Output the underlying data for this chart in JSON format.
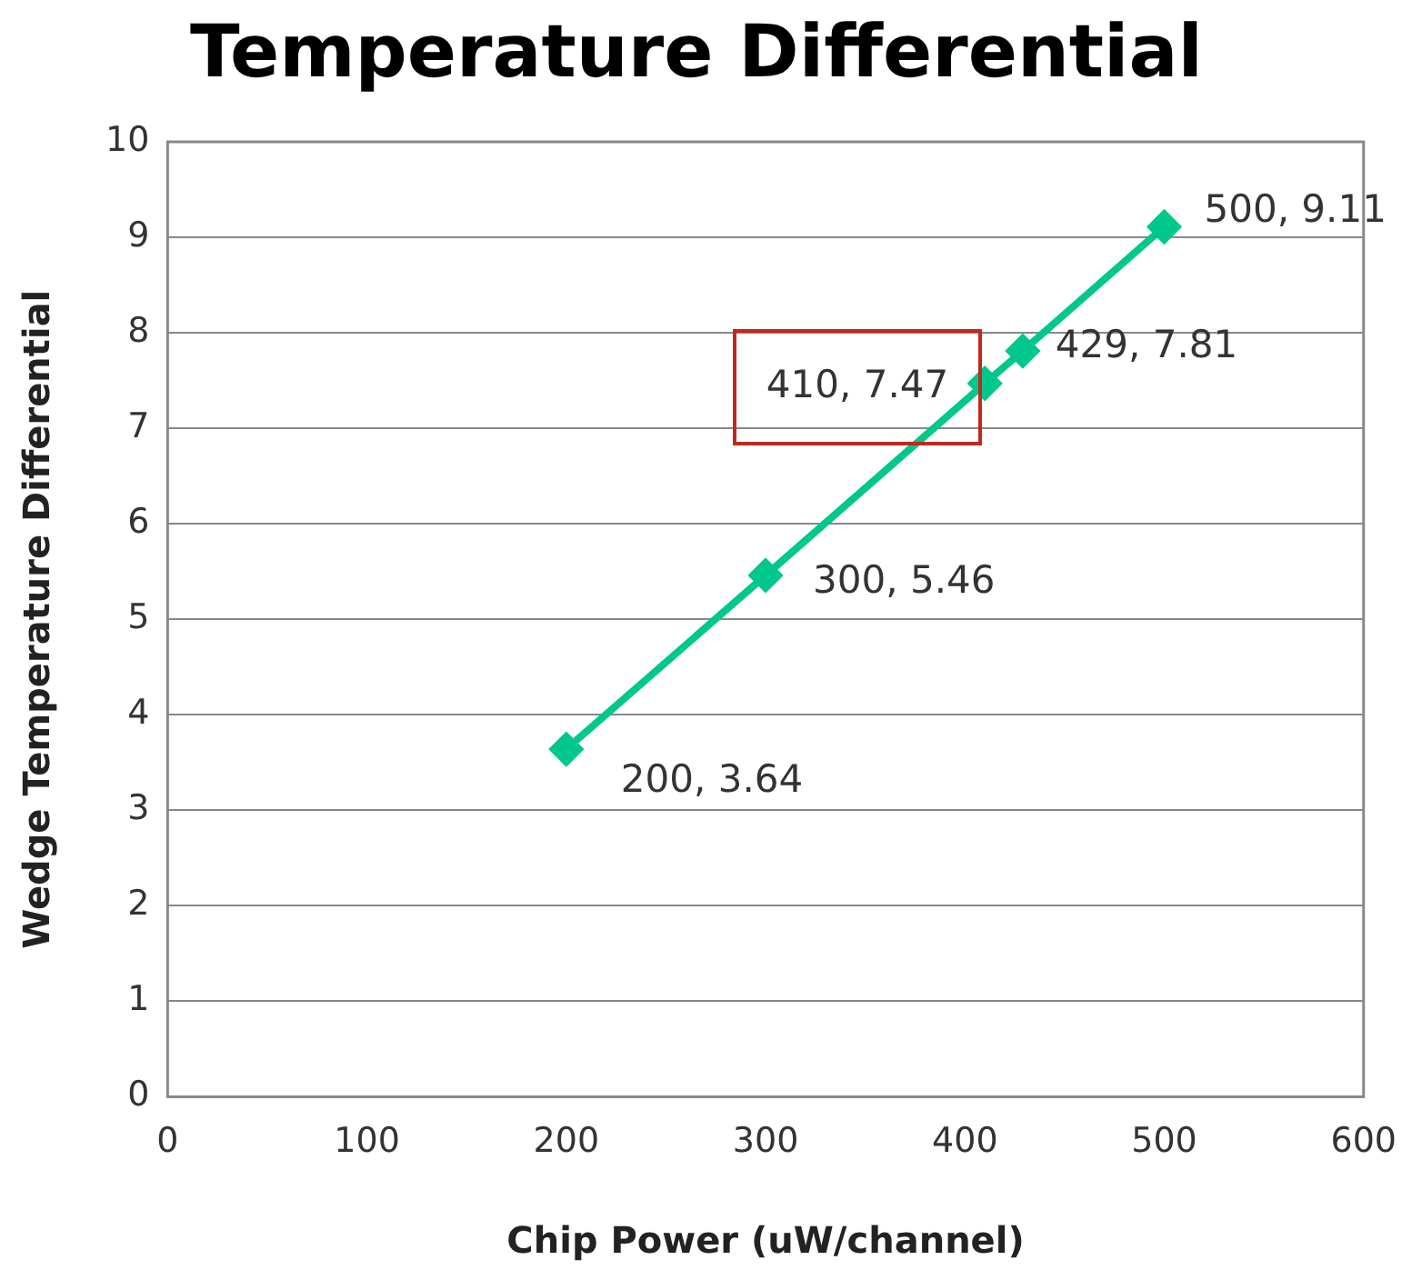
{
  "chart_data": {
    "type": "line",
    "title": "Temperature Differential",
    "xlabel": "Chip Power (uW/channel)",
    "ylabel": "Wedge Temperature Differential",
    "x": [
      200,
      300,
      410,
      429,
      500
    ],
    "series": [
      {
        "color": "#00c88c",
        "values": [
          3.64,
          5.46,
          7.47,
          7.81,
          9.11
        ],
        "value_labels": [
          "200, 3.64",
          "300, 5.46",
          "410, 7.47",
          "429, 7.81",
          "500, 9.11"
        ]
      }
    ],
    "xlim": [
      0,
      600
    ],
    "xticks": [
      0,
      100,
      200,
      300,
      400,
      500,
      600
    ],
    "ylim": [
      0,
      10
    ],
    "yticks": [
      0,
      1,
      2,
      3,
      4,
      5,
      6,
      7,
      8,
      9,
      10
    ],
    "grid": "y",
    "legend": false,
    "marker": "diamond",
    "line_style": "solid"
  }
}
